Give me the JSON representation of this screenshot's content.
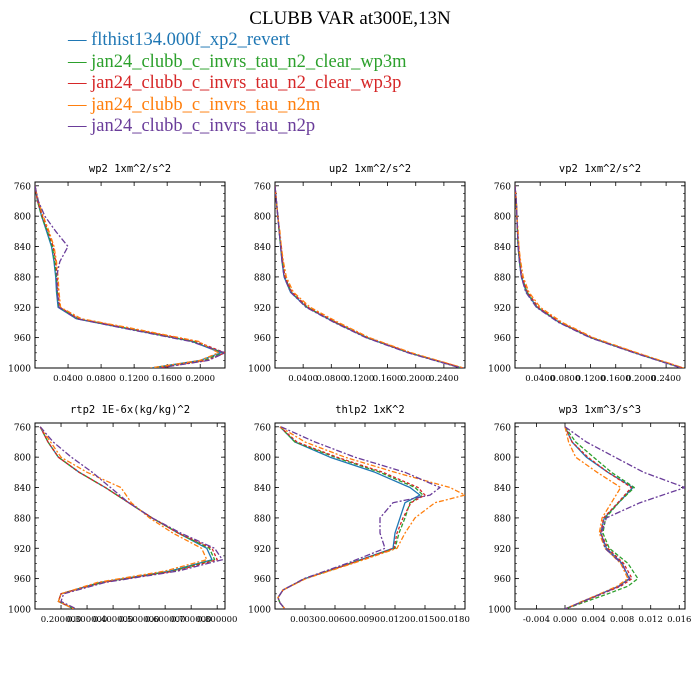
{
  "title": "CLUBB VAR at300E,13N",
  "legend": [
    {
      "label": "flthist134.000f_xp2_revert",
      "color": "#1f77b4"
    },
    {
      "label": "jan24_clubb_c_invrs_tau_n2_clear_wp3m",
      "color": "#2ca02c"
    },
    {
      "label": "jan24_clubb_c_invrs_tau_n2_clear_wp3p",
      "color": "#d62728"
    },
    {
      "label": "jan24_clubb_c_invrs_tau_n2m",
      "color": "#ff7f0e"
    },
    {
      "label": "jan24_clubb_c_invrs_tau_n2p",
      "color": "#6a3d9a"
    }
  ],
  "chart_data": [
    {
      "type": "line",
      "title": "wp2  1xm^2/s^2",
      "xlim": [
        0,
        0.23
      ],
      "ylim": [
        1000,
        755
      ],
      "xticks": [
        0.04,
        0.08,
        0.12,
        0.16,
        0.2
      ],
      "xtick_labels": [
        "0.0400",
        "0.0800",
        "0.1200",
        "0.1600",
        "0.2000"
      ],
      "yticks": [
        760,
        800,
        840,
        880,
        920,
        960,
        1000
      ],
      "y": [
        760,
        780,
        800,
        820,
        840,
        860,
        880,
        900,
        920,
        935,
        950,
        965,
        980,
        990,
        1000
      ],
      "series": [
        {
          "values": [
            0.0,
            0.003,
            0.008,
            0.014,
            0.02,
            0.023,
            0.025,
            0.026,
            0.028,
            0.05,
            0.12,
            0.19,
            0.225,
            0.2,
            0.14
          ]
        },
        {
          "values": [
            0.0,
            0.003,
            0.008,
            0.015,
            0.021,
            0.024,
            0.026,
            0.027,
            0.029,
            0.052,
            0.122,
            0.192,
            0.228,
            0.205,
            0.145
          ]
        },
        {
          "values": [
            0.0,
            0.003,
            0.009,
            0.016,
            0.022,
            0.025,
            0.027,
            0.028,
            0.03,
            0.053,
            0.124,
            0.195,
            0.23,
            0.208,
            0.15
          ]
        },
        {
          "values": [
            0.0,
            0.004,
            0.01,
            0.017,
            0.023,
            0.026,
            0.028,
            0.029,
            0.031,
            0.056,
            0.128,
            0.198,
            0.222,
            0.2,
            0.14
          ]
        },
        {
          "values": [
            0.0,
            0.004,
            0.012,
            0.025,
            0.04,
            0.03,
            0.026,
            0.027,
            0.029,
            0.05,
            0.118,
            0.188,
            0.23,
            0.21,
            0.15
          ]
        }
      ]
    },
    {
      "type": "line",
      "title": "up2  1xm^2/s^2",
      "xlim": [
        0,
        0.27
      ],
      "ylim": [
        1000,
        755
      ],
      "xticks": [
        0.04,
        0.08,
        0.12,
        0.16,
        0.2,
        0.24
      ],
      "xtick_labels": [
        "0.0400",
        "0.0800",
        "0.1200",
        "0.1600",
        "0.2000",
        "0.2400"
      ],
      "yticks": [
        760,
        800,
        840,
        880,
        920,
        960,
        1000
      ],
      "y": [
        760,
        780,
        800,
        820,
        840,
        860,
        880,
        900,
        920,
        940,
        960,
        980,
        1000
      ],
      "series": [
        {
          "values": [
            0.0,
            0.002,
            0.004,
            0.006,
            0.008,
            0.01,
            0.013,
            0.022,
            0.045,
            0.085,
            0.13,
            0.19,
            0.265
          ]
        },
        {
          "values": [
            0.0,
            0.002,
            0.004,
            0.006,
            0.008,
            0.011,
            0.014,
            0.023,
            0.046,
            0.086,
            0.131,
            0.191,
            0.266
          ]
        },
        {
          "values": [
            0.0,
            0.002,
            0.004,
            0.006,
            0.009,
            0.011,
            0.014,
            0.024,
            0.047,
            0.087,
            0.132,
            0.192,
            0.267
          ]
        },
        {
          "values": [
            0.0,
            0.002,
            0.004,
            0.007,
            0.009,
            0.012,
            0.016,
            0.026,
            0.05,
            0.09,
            0.134,
            0.194,
            0.268
          ]
        },
        {
          "values": [
            0.0,
            0.002,
            0.004,
            0.006,
            0.008,
            0.01,
            0.013,
            0.022,
            0.044,
            0.084,
            0.129,
            0.189,
            0.264
          ]
        }
      ]
    },
    {
      "type": "line",
      "title": "vp2  1xm^2/s^2",
      "xlim": [
        0,
        0.27
      ],
      "ylim": [
        1000,
        755
      ],
      "xticks": [
        0.04,
        0.08,
        0.12,
        0.16,
        0.2,
        0.24
      ],
      "xtick_labels": [
        "0.0400",
        "0.0800",
        "0.1200",
        "0.1600",
        "0.2000",
        "0.2400"
      ],
      "yticks": [
        760,
        800,
        840,
        880,
        920,
        960,
        1000
      ],
      "y": [
        760,
        780,
        800,
        820,
        840,
        860,
        880,
        900,
        920,
        940,
        960,
        980,
        1000
      ],
      "series": [
        {
          "values": [
            0.0,
            0.002,
            0.003,
            0.004,
            0.005,
            0.007,
            0.01,
            0.018,
            0.035,
            0.07,
            0.12,
            0.19,
            0.265
          ]
        },
        {
          "values": [
            0.0,
            0.002,
            0.003,
            0.004,
            0.005,
            0.007,
            0.011,
            0.019,
            0.036,
            0.071,
            0.121,
            0.191,
            0.266
          ]
        },
        {
          "values": [
            0.0,
            0.002,
            0.003,
            0.004,
            0.006,
            0.008,
            0.011,
            0.02,
            0.037,
            0.072,
            0.122,
            0.192,
            0.267
          ]
        },
        {
          "values": [
            0.0,
            0.002,
            0.003,
            0.005,
            0.006,
            0.009,
            0.013,
            0.022,
            0.04,
            0.075,
            0.124,
            0.194,
            0.268
          ]
        },
        {
          "values": [
            0.0,
            0.002,
            0.003,
            0.004,
            0.005,
            0.007,
            0.01,
            0.017,
            0.034,
            0.069,
            0.119,
            0.189,
            0.264
          ]
        }
      ]
    },
    {
      "type": "line",
      "title": "rtp2  1E-6x(kg/kg)^2",
      "xlim": [
        0.1,
        0.83
      ],
      "ylim": [
        1000,
        755
      ],
      "xticks": [
        0.2,
        0.3,
        0.4,
        0.5,
        0.6,
        0.7,
        0.8
      ],
      "xtick_labels": [
        "0.200000",
        "0.300000",
        "0.400000",
        "0.500000",
        "0.600000",
        "0.700000",
        "0.800000"
      ],
      "yticks": [
        760,
        800,
        840,
        880,
        920,
        960,
        1000
      ],
      "y": [
        760,
        780,
        800,
        820,
        840,
        860,
        880,
        900,
        920,
        935,
        950,
        965,
        980,
        990,
        1000
      ],
      "series": [
        {
          "values": [
            0.12,
            0.15,
            0.19,
            0.27,
            0.37,
            0.46,
            0.55,
            0.65,
            0.76,
            0.78,
            0.62,
            0.35,
            0.2,
            0.19,
            0.25
          ]
        },
        {
          "values": [
            0.12,
            0.15,
            0.19,
            0.27,
            0.37,
            0.46,
            0.55,
            0.65,
            0.77,
            0.79,
            0.63,
            0.36,
            0.2,
            0.19,
            0.25
          ]
        },
        {
          "values": [
            0.12,
            0.15,
            0.19,
            0.27,
            0.37,
            0.46,
            0.55,
            0.65,
            0.78,
            0.8,
            0.64,
            0.36,
            0.2,
            0.19,
            0.25
          ]
        },
        {
          "values": [
            0.12,
            0.16,
            0.2,
            0.3,
            0.43,
            0.47,
            0.54,
            0.63,
            0.74,
            0.76,
            0.6,
            0.34,
            0.2,
            0.19,
            0.25
          ]
        },
        {
          "values": [
            0.12,
            0.17,
            0.24,
            0.32,
            0.39,
            0.46,
            0.55,
            0.66,
            0.79,
            0.82,
            0.65,
            0.37,
            0.21,
            0.2,
            0.26
          ]
        }
      ]
    },
    {
      "type": "line",
      "title": "thlp2  1xK^2",
      "xlim": [
        0,
        0.019
      ],
      "ylim": [
        1000,
        755
      ],
      "xticks": [
        0.003,
        0.006,
        0.009,
        0.012,
        0.015,
        0.018
      ],
      "xtick_labels": [
        "0.0030",
        "0.0060",
        "0.0090",
        "0.0120",
        "0.0150",
        "0.0180"
      ],
      "yticks": [
        760,
        800,
        840,
        880,
        920,
        960,
        1000
      ],
      "y": [
        760,
        780,
        800,
        820,
        840,
        850,
        860,
        880,
        900,
        920,
        940,
        960,
        975,
        985,
        992,
        1000
      ],
      "series": [
        {
          "values": [
            0.0005,
            0.002,
            0.0055,
            0.01,
            0.0135,
            0.0145,
            0.013,
            0.0125,
            0.012,
            0.0118,
            0.0075,
            0.003,
            0.0008,
            0.0003,
            0.0005,
            0.001
          ]
        },
        {
          "values": [
            0.0005,
            0.002,
            0.006,
            0.0105,
            0.014,
            0.0148,
            0.0135,
            0.013,
            0.0124,
            0.012,
            0.0076,
            0.003,
            0.0008,
            0.0003,
            0.0005,
            0.001
          ]
        },
        {
          "values": [
            0.0005,
            0.0022,
            0.0062,
            0.0108,
            0.0143,
            0.015,
            0.0136,
            0.0128,
            0.0122,
            0.0119,
            0.0076,
            0.003,
            0.0008,
            0.0003,
            0.0005,
            0.001
          ]
        },
        {
          "values": [
            0.0005,
            0.003,
            0.007,
            0.012,
            0.0175,
            0.019,
            0.016,
            0.014,
            0.013,
            0.0122,
            0.0078,
            0.0031,
            0.0008,
            0.0003,
            0.0005,
            0.001
          ]
        },
        {
          "values": [
            0.0006,
            0.004,
            0.008,
            0.013,
            0.0165,
            0.0155,
            0.0118,
            0.0105,
            0.0105,
            0.011,
            0.0072,
            0.0029,
            0.0008,
            0.0003,
            0.0005,
            0.001
          ]
        }
      ]
    },
    {
      "type": "line",
      "title": "wp3  1xm^3/s^3",
      "xlim": [
        -0.007,
        0.0168
      ],
      "ylim": [
        1000,
        755
      ],
      "xticks": [
        -0.004,
        0.0,
        0.004,
        0.008,
        0.012,
        0.016
      ],
      "xtick_labels": [
        "-0.004",
        "0.000",
        "0.004",
        "0.008",
        "0.012",
        "0.016"
      ],
      "yticks": [
        760,
        800,
        840,
        880,
        920,
        960,
        1000
      ],
      "y": [
        760,
        780,
        800,
        820,
        840,
        860,
        880,
        900,
        920,
        940,
        960,
        970,
        980,
        990,
        1000
      ],
      "series": [
        {
          "values": [
            0.0,
            0.001,
            0.003,
            0.006,
            0.0095,
            0.0075,
            0.0055,
            0.005,
            0.0058,
            0.008,
            0.009,
            0.0075,
            0.005,
            0.0025,
            0.0
          ]
        },
        {
          "values": [
            0.0,
            0.0015,
            0.004,
            0.0065,
            0.0097,
            0.0075,
            0.0057,
            0.0053,
            0.0062,
            0.0088,
            0.0102,
            0.0088,
            0.006,
            0.003,
            0.0
          ]
        },
        {
          "values": [
            0.0,
            0.001,
            0.0032,
            0.006,
            0.0093,
            0.0074,
            0.0054,
            0.005,
            0.006,
            0.0082,
            0.0094,
            0.0078,
            0.0052,
            0.0026,
            0.0
          ]
        },
        {
          "values": [
            0.0,
            0.0005,
            0.0015,
            0.0045,
            0.0078,
            0.0065,
            0.0052,
            0.0048,
            0.0056,
            0.0078,
            0.0088,
            0.0073,
            0.0049,
            0.0024,
            0.0
          ]
        },
        {
          "values": [
            0.0,
            0.003,
            0.007,
            0.011,
            0.0168,
            0.0105,
            0.0058,
            0.0051,
            0.0056,
            0.0079,
            0.0091,
            0.0076,
            0.0051,
            0.0025,
            0.0
          ]
        }
      ]
    }
  ]
}
